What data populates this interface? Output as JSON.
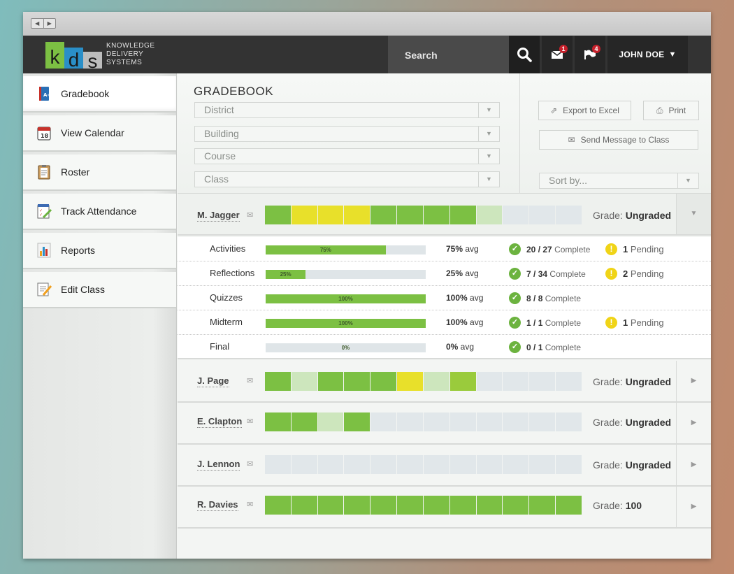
{
  "colors": {
    "green": "#7cc043",
    "yellow": "#e8e02a",
    "light_green": "#cde6bd",
    "lime": "#9acb3c",
    "empty": "#e1e7ea"
  },
  "header": {
    "logo_letters": [
      "k",
      "d",
      "s"
    ],
    "logo_text": [
      "KNOWLEDGE",
      "DELIVERY",
      "SYSTEMS"
    ],
    "search_label": "Search",
    "mail_count": "1",
    "flag_count": "4",
    "user_name": "JOHN DOE"
  },
  "sidebar": {
    "items": [
      {
        "label": "Gradebook",
        "icon": "gradebook-icon"
      },
      {
        "label": "View Calendar",
        "icon": "calendar-icon"
      },
      {
        "label": "Roster",
        "icon": "clipboard-icon"
      },
      {
        "label": "Track Attendance",
        "icon": "attendance-icon"
      },
      {
        "label": "Reports",
        "icon": "bar-chart-icon"
      },
      {
        "label": "Edit Class",
        "icon": "edit-icon"
      }
    ],
    "calendar_day": "18"
  },
  "toolbar": {
    "title": "GRADEBOOK",
    "filters": [
      "District",
      "Building",
      "Course",
      "Class"
    ],
    "export_label": "Export to Excel",
    "print_label": "Print",
    "send_label": "Send Message to Class",
    "sort_placeholder": "Sort by..."
  },
  "students": [
    {
      "name": "M. Jagger",
      "grade_label": "Grade:",
      "grade": "Ungraded",
      "blocks": [
        "green",
        "yellow",
        "yellow",
        "yellow",
        "green",
        "green",
        "green",
        "green",
        "light_green",
        "empty",
        "empty",
        "empty"
      ]
    },
    {
      "name": "J. Page",
      "grade_label": "Grade:",
      "grade": "Ungraded",
      "blocks": [
        "green",
        "light_green",
        "green",
        "green",
        "green",
        "yellow",
        "light_green",
        "lime",
        "empty",
        "empty",
        "empty",
        "empty"
      ]
    },
    {
      "name": "E. Clapton",
      "grade_label": "Grade:",
      "grade": "Ungraded",
      "blocks": [
        "green",
        "green",
        "light_green",
        "green",
        "empty",
        "empty",
        "empty",
        "empty",
        "empty",
        "empty",
        "empty",
        "empty"
      ]
    },
    {
      "name": "J. Lennon",
      "grade_label": "Grade:",
      "grade": "Ungraded",
      "blocks": [
        "empty",
        "empty",
        "empty",
        "empty",
        "empty",
        "empty",
        "empty",
        "empty",
        "empty",
        "empty",
        "empty",
        "empty"
      ]
    },
    {
      "name": "R. Davies",
      "grade_label": "Grade:",
      "grade": "100",
      "blocks": [
        "green",
        "green",
        "green",
        "green",
        "green",
        "green",
        "green",
        "green",
        "green",
        "green",
        "green",
        "green"
      ]
    }
  ],
  "details": [
    {
      "label": "Activities",
      "progress": 75,
      "progress_text": "75%",
      "avg": "75%",
      "avg_suffix": " avg",
      "done": "20",
      "total": "27",
      "complete_label": " Complete",
      "pending": "1",
      "pending_label": " Pending"
    },
    {
      "label": "Reflections",
      "progress": 25,
      "progress_text": "25%",
      "avg": "25%",
      "avg_suffix": " avg",
      "done": "7",
      "total": "34",
      "complete_label": " Complete",
      "pending": "2",
      "pending_label": " Pending"
    },
    {
      "label": "Quizzes",
      "progress": 100,
      "progress_text": "100%",
      "avg": "100%",
      "avg_suffix": " avg",
      "done": "8",
      "total": "8",
      "complete_label": " Complete",
      "pending": null,
      "pending_label": null
    },
    {
      "label": "Midterm",
      "progress": 100,
      "progress_text": "100%",
      "avg": "100%",
      "avg_suffix": " avg",
      "done": "1",
      "total": "1",
      "complete_label": " Complete",
      "pending": "1",
      "pending_label": " Pending"
    },
    {
      "label": "Final",
      "progress": 0,
      "progress_text": "0%",
      "avg": "0%",
      "avg_suffix": " avg",
      "done": "0",
      "total": "1",
      "complete_label": " Complete",
      "pending": null,
      "pending_label": null
    }
  ]
}
